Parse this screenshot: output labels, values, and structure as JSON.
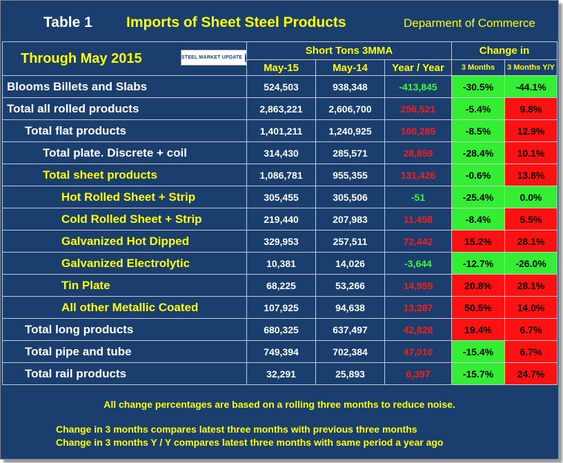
{
  "header": {
    "table_label": "Table 1",
    "title": "Imports of Sheet Steel Products",
    "source": "Deparment of Commerce",
    "through": "Through May 2015",
    "logo_text": "STEEL MARKET UPDATE",
    "group_short_tons": "Short Tons 3MMA",
    "group_change": "Change in",
    "col_may15": "May-15",
    "col_may14": "May-14",
    "col_yoy": "Year / Year",
    "col_3m": "3 Months",
    "col_3m_yy": "3 Months Y/Y"
  },
  "rows": [
    {
      "label": "Blooms Billets and Slabs",
      "indent": 0,
      "color": "#ffffff",
      "may15": "524,503",
      "may14": "938,348",
      "yoy": "-413,845",
      "yoy_sign": "neg",
      "c3m": "-30.5%",
      "c3m_c": "g",
      "c3mYY": "-44.1%",
      "c3mYY_c": "g"
    },
    {
      "label": "Total all rolled products",
      "indent": 0,
      "color": "#ffffff",
      "may15": "2,863,221",
      "may14": "2,606,700",
      "yoy": "256,521",
      "yoy_sign": "pos",
      "c3m": "-5.4%",
      "c3m_c": "g",
      "c3mYY": "9.8%",
      "c3mYY_c": "r"
    },
    {
      "label": "Total flat products",
      "indent": 1,
      "color": "#ffffff",
      "may15": "1,401,211",
      "may14": "1,240,925",
      "yoy": "160,285",
      "yoy_sign": "pos",
      "c3m": "-8.5%",
      "c3m_c": "g",
      "c3mYY": "12.9%",
      "c3mYY_c": "r"
    },
    {
      "label": "Total plate. Discrete + coil",
      "indent": 2,
      "color": "#ffffff",
      "may15": "314,430",
      "may14": "285,571",
      "yoy": "28,859",
      "yoy_sign": "pos",
      "c3m": "-28.4%",
      "c3m_c": "g",
      "c3mYY": "10.1%",
      "c3mYY_c": "r"
    },
    {
      "label": "Total sheet products",
      "indent": 2,
      "color": "#ffff00",
      "may15": "1,086,781",
      "may14": "955,355",
      "yoy": "131,426",
      "yoy_sign": "pos",
      "c3m": "-0.6%",
      "c3m_c": "g",
      "c3mYY": "13.8%",
      "c3mYY_c": "r"
    },
    {
      "label": "Hot Rolled Sheet + Strip",
      "indent": 3,
      "color": "#ffff00",
      "may15": "305,455",
      "may14": "305,506",
      "yoy": "-51",
      "yoy_sign": "neg",
      "c3m": "-25.4%",
      "c3m_c": "g",
      "c3mYY": "0.0%",
      "c3mYY_c": "g"
    },
    {
      "label": "Cold Rolled Sheet + Strip",
      "indent": 3,
      "color": "#ffff00",
      "may15": "219,440",
      "may14": "207,983",
      "yoy": "11,458",
      "yoy_sign": "pos",
      "c3m": "-8.4%",
      "c3m_c": "g",
      "c3mYY": "5.5%",
      "c3mYY_c": "r"
    },
    {
      "label": "Galvanized Hot Dipped",
      "indent": 3,
      "color": "#ffff00",
      "may15": "329,953",
      "may14": "257,511",
      "yoy": "72,442",
      "yoy_sign": "pos",
      "c3m": "15.2%",
      "c3m_c": "r",
      "c3mYY": "28.1%",
      "c3mYY_c": "r"
    },
    {
      "label": "Galvanized Electrolytic",
      "indent": 3,
      "color": "#ffff00",
      "may15": "10,381",
      "may14": "14,026",
      "yoy": "-3,644",
      "yoy_sign": "neg",
      "c3m": "-12.7%",
      "c3m_c": "g",
      "c3mYY": "-26.0%",
      "c3mYY_c": "g"
    },
    {
      "label": "Tin Plate",
      "indent": 3,
      "color": "#ffff00",
      "may15": "68,225",
      "may14": "53,266",
      "yoy": "14,959",
      "yoy_sign": "pos",
      "c3m": "20.8%",
      "c3m_c": "r",
      "c3mYY": "28.1%",
      "c3mYY_c": "r"
    },
    {
      "label": "All other Metallic Coated",
      "indent": 3,
      "color": "#ffff00",
      "may15": "107,925",
      "may14": "94,638",
      "yoy": "13,287",
      "yoy_sign": "pos",
      "c3m": "50.5%",
      "c3m_c": "r",
      "c3mYY": "14.0%",
      "c3mYY_c": "r"
    },
    {
      "label": "Total long products",
      "indent": 1,
      "color": "#ffffff",
      "may15": "680,325",
      "may14": "637,497",
      "yoy": "42,828",
      "yoy_sign": "pos",
      "c3m": "19.4%",
      "c3m_c": "r",
      "c3mYY": "6.7%",
      "c3mYY_c": "r"
    },
    {
      "label": "Total pipe and tube",
      "indent": 1,
      "color": "#ffffff",
      "may15": "749,394",
      "may14": "702,384",
      "yoy": "47,010",
      "yoy_sign": "pos",
      "c3m": "-15.4%",
      "c3m_c": "g",
      "c3mYY": "6.7%",
      "c3mYY_c": "r"
    },
    {
      "label": "Total rail products",
      "indent": 1,
      "color": "#ffffff",
      "may15": "32,291",
      "may14": "25,893",
      "yoy": "6,397",
      "yoy_sign": "pos",
      "c3m": "-15.7%",
      "c3m_c": "g",
      "c3mYY": "24.7%",
      "c3mYY_c": "r"
    }
  ],
  "footer": {
    "note1": "All change percentages are based on a rolling three months to reduce noise.",
    "note2": "Change in 3 months compares latest three months with previous three months",
    "note3": "Change in 3 months  Y / Y compares latest three months with same period a year ago"
  }
}
